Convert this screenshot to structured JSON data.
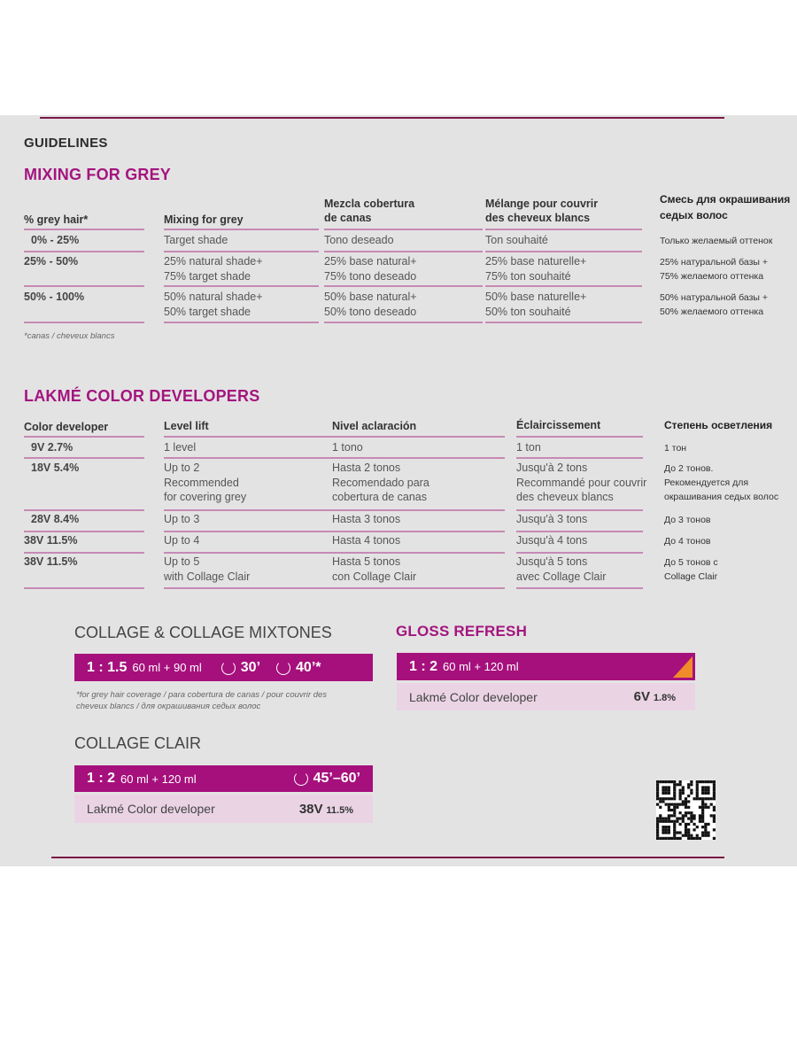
{
  "guidelines_title": "GUIDELINES",
  "mixing": {
    "title": "MIXING FOR GREY",
    "headers": [
      "% grey hair*",
      "Mixing for grey",
      "Mezcla cobertura\nde canas",
      "Mélange pour couvrir\ndes cheveux blancs",
      "Смесь для окрашивания\nседых волос"
    ],
    "rows": [
      [
        "0% -  25%",
        "Target shade",
        "Tono deseado",
        "Ton souhaité",
        "Только желаемый оттенок"
      ],
      [
        "25% -  50%",
        "25% natural shade+\n75% target shade",
        "25% base natural+\n75% tono deseado",
        "25% base naturelle+\n75% ton souhaité",
        "25% натуральной базы +\n75% желаемого оттенка"
      ],
      [
        "50% - 100%",
        "50% natural shade+\n50% target shade",
        "50% base natural+\n50% tono deseado",
        "50% base naturelle+\n50% ton souhaité",
        "50% натуральной базы +\n50% желаемого оттенка"
      ]
    ],
    "footnote": "*canas / cheveux blancs"
  },
  "developers": {
    "title": "LAKMÉ COLOR DEVELOPERS",
    "headers": [
      "Color developer",
      "Level lift",
      "Nivel aclaración",
      "Éclaircissement",
      "Степень осветления"
    ],
    "rows": [
      [
        "9V  2.7%",
        "1 level",
        "1 tono",
        "1 ton",
        "1 тон"
      ],
      [
        "18V  5.4%",
        "Up to 2\nRecommended\nfor covering grey",
        "Hasta 2 tonos\nRecomendado para\ncobertura de canas",
        "Jusqu'à 2 tons\nRecommandé pour couvrir\ndes cheveux blancs",
        "До 2 тонов.\nРекомендуется для\nокрашивания седых волос"
      ],
      [
        "28V  8.4%",
        "Up to 3",
        "Hasta 3 tonos",
        "Jusqu'à 3 tons",
        "До 3 тонов"
      ],
      [
        "38V  11.5%",
        "Up to 4",
        "Hasta 4 tonos",
        "Jusqu'à 4 tons",
        "До 4 тонов"
      ],
      [
        "38V  11.5%",
        "Up to 5\nwith Collage Clair",
        "Hasta 5 tonos\ncon Collage Clair",
        "Jusqu'à 5 tons\navec Collage Clair",
        "До 5 тонов с\nCollage Clair"
      ]
    ]
  },
  "collage": {
    "title": "COLLAGE & COLLAGE MIXTONES",
    "ratio": "1 : 1.5",
    "amount": "60 ml + 90 ml",
    "time1": "30’",
    "time2": "40’*",
    "footnote": "*for grey hair coverage / para cobertura de canas / pour couvrir des cheveux blancs / для окрашивания седых волос"
  },
  "collage_clair": {
    "title": "COLLAGE CLAIR",
    "ratio": "1 : 2",
    "amount": "60 ml  + 120 ml",
    "time": "45’–60’",
    "developer_label": "Lakmé Color developer",
    "developer_value": "38V",
    "developer_pct": "11.5%"
  },
  "gloss": {
    "title": "GLOSS REFRESH",
    "ratio": "1 : 2",
    "amount": "60 ml + 120 ml",
    "developer_label": "Lakmé Color developer",
    "developer_value": "6V",
    "developer_pct": "1.8%"
  },
  "colors": {
    "magenta": "#a6107c",
    "light_pink": "#ead4e4",
    "orange": "#f08a2a",
    "background": "#e4e3e3"
  },
  "icons": [
    "clock-icon",
    "qr-code"
  ]
}
